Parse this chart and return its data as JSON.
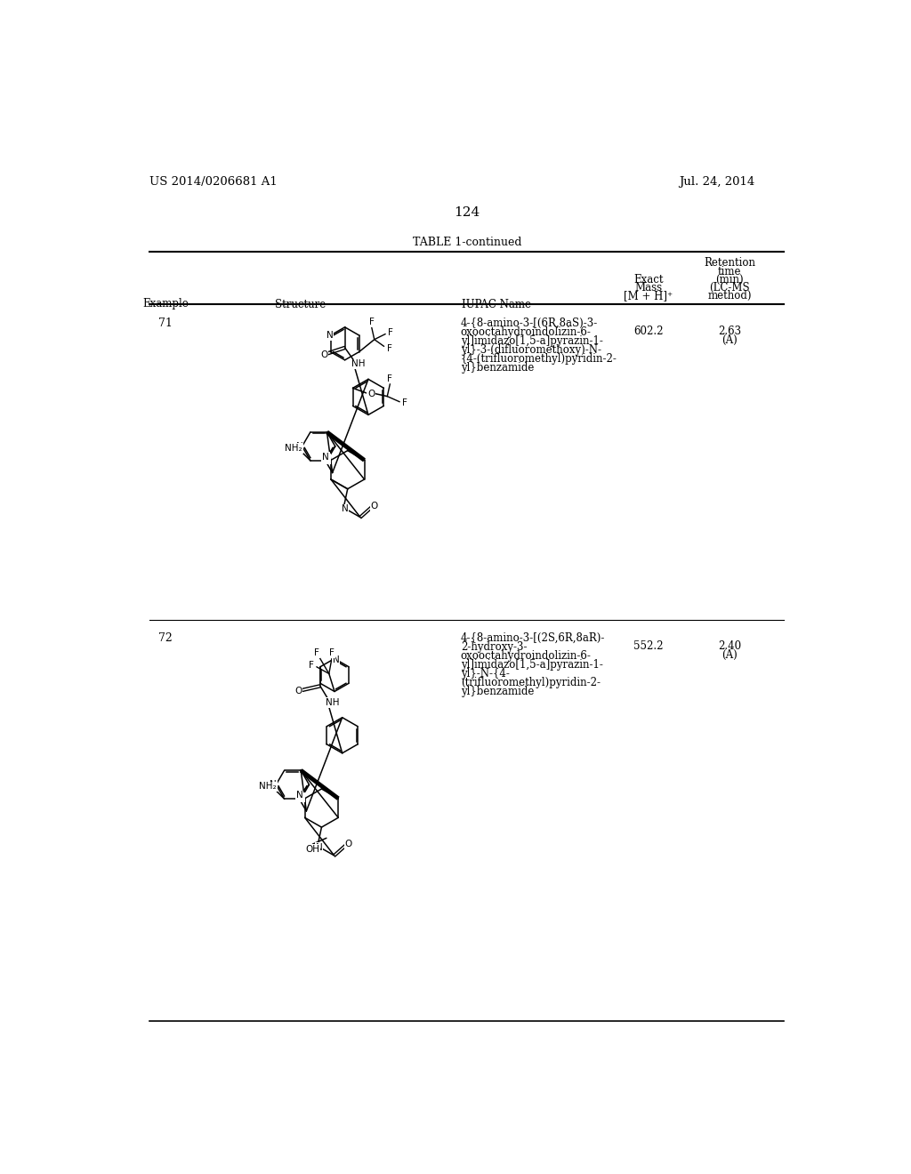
{
  "page_number": "124",
  "patent_number": "US 2014/0206681 A1",
  "patent_date": "Jul. 24, 2014",
  "table_title": "TABLE 1-continued",
  "col_example": "Example",
  "col_structure": "Structure",
  "col_iupac": "IUPAC Name",
  "col_exact_1": "Exact",
  "col_exact_2": "Mass",
  "col_exact_3": "[M + H]",
  "col_ret_1": "Retention",
  "col_ret_2": "time",
  "col_ret_3": "(min)",
  "col_ret_4": "(LC-MS",
  "col_ret_5": "method)",
  "row71_ex": "71",
  "row71_iupac": [
    "4-{8-amino-3-[(6R,8aS)-3-",
    "oxooctahydroindolizin-6-",
    "yl]imidazo[1,5-a]pyrazin-1-",
    "yl}-3-(difluoromethoxy)-N-",
    "{4-(trifluoromethyl)pyridin-2-",
    "yl}benzamide"
  ],
  "row71_mass": "602.2",
  "row71_rt": "2.63",
  "row71_method": "(A)",
  "row72_ex": "72",
  "row72_iupac": [
    "4-{8-amino-3-[(2S,6R,8aR)-",
    "2-hydroxy-3-",
    "oxooctahydroindolizin-6-",
    "yl]imidazo[1,5-a]pyrazin-1-",
    "yl}-N-{4-",
    "(trifluoromethyl)pyridin-2-",
    "yl}benzamide"
  ],
  "row72_mass": "552.2",
  "row72_rt": "2.40",
  "row72_method": "(A)"
}
